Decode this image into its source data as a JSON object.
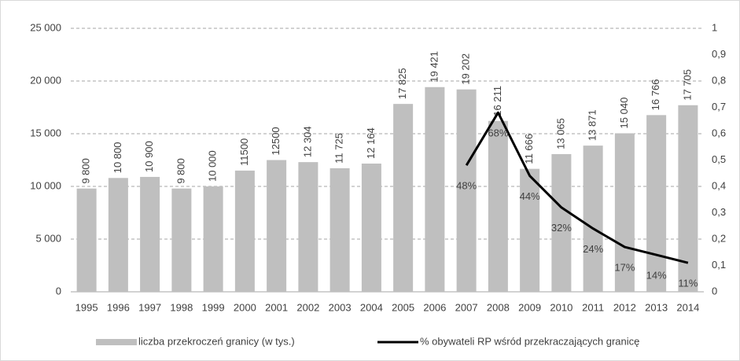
{
  "chart_data": {
    "type": "bar_line",
    "categories": [
      "1995",
      "1996",
      "1997",
      "1998",
      "1999",
      "2000",
      "2001",
      "2002",
      "2003",
      "2004",
      "2005",
      "2006",
      "2007",
      "2008",
      "2009",
      "2010",
      "2011",
      "2012",
      "2013",
      "2014"
    ],
    "series": [
      {
        "name": "liczba przekroczeń granicy (w tys.)",
        "type": "bar",
        "color": "#bfbfbf",
        "values": [
          9800,
          10800,
          10900,
          9800,
          10000,
          11500,
          12500,
          12304,
          11725,
          12164,
          17825,
          19421,
          19202,
          16211,
          11666,
          13065,
          13871,
          15040,
          16766,
          17705
        ],
        "value_labels": [
          "9 800",
          "10 800",
          "10 900",
          "9 800",
          "10 000",
          "11500",
          "12500",
          "12 304",
          "11 725",
          "12 164",
          "17 825",
          "19 421",
          "19 202",
          "16 211",
          "11 666",
          "13 065",
          "13 871",
          "15 040",
          "16 766",
          "17 705"
        ]
      },
      {
        "name": "% obywateli RP wśród przekraczających granicę",
        "type": "line",
        "color": "#000000",
        "axis": "y2",
        "values": [
          null,
          null,
          null,
          null,
          null,
          null,
          null,
          null,
          null,
          null,
          null,
          null,
          0.48,
          0.68,
          0.44,
          0.32,
          0.24,
          0.17,
          0.14,
          0.11
        ],
        "value_labels": [
          null,
          null,
          null,
          null,
          null,
          null,
          null,
          null,
          null,
          null,
          null,
          null,
          "48%",
          "68%",
          "44%",
          "32%",
          "24%",
          "17%",
          "14%",
          "11%"
        ]
      }
    ],
    "ylim": [
      0,
      25000
    ],
    "yticks": [
      0,
      {
        "value": 5000,
        "label": "5 000"
      },
      {
        "value": 10000,
        "label": "10 000"
      },
      {
        "value": 15000,
        "label": "15 000"
      },
      {
        "value": 20000,
        "label": "20 000"
      },
      {
        "value": 25000,
        "label": "25 000"
      }
    ],
    "y2lim": [
      0,
      1
    ],
    "y2ticks": [
      0,
      {
        "value": 0.1,
        "label": "0,1"
      },
      {
        "value": 0.2,
        "label": "0,2"
      },
      {
        "value": 0.3,
        "label": "0,3"
      },
      {
        "value": 0.4,
        "label": "0,4"
      },
      {
        "value": 0.5,
        "label": "0,5"
      },
      {
        "value": 0.6,
        "label": "0,6"
      },
      {
        "value": 0.7,
        "label": "0,7"
      },
      {
        "value": 0.8,
        "label": "0,8"
      },
      {
        "value": 0.9,
        "label": "0,9"
      },
      1
    ],
    "grid": true,
    "legend": "bottom"
  }
}
